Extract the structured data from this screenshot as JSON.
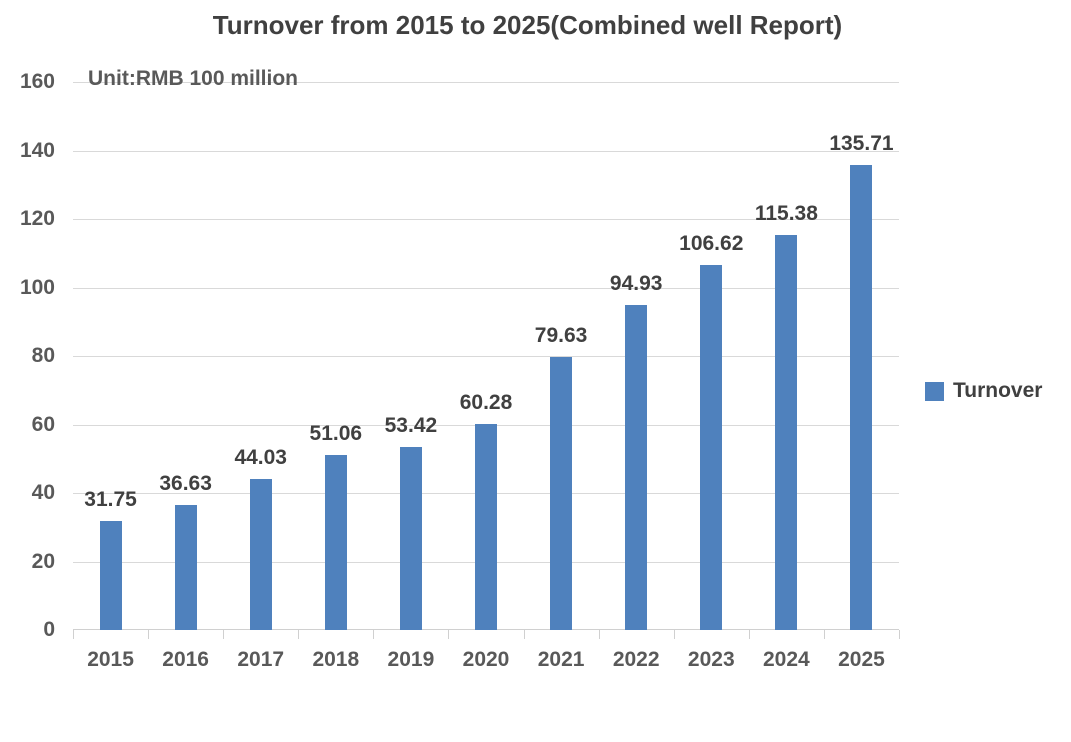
{
  "chart_data": {
    "type": "bar",
    "title": "Turnover from 2015 to 2025(Combined well Report)",
    "unit_label": "Unit:RMB 100 million",
    "categories": [
      "2015",
      "2016",
      "2017",
      "2018",
      "2019",
      "2020",
      "2021",
      "2022",
      "2023",
      "2024",
      "2025"
    ],
    "series": [
      {
        "name": "Turnover",
        "values": [
          31.75,
          36.63,
          44.03,
          51.06,
          53.42,
          60.28,
          79.63,
          94.93,
          106.62,
          115.38,
          135.71
        ]
      }
    ],
    "value_labels": [
      "31.75",
      "36.63",
      "44.03",
      "51.06",
      "53.42",
      "60.28",
      "79.63",
      "94.93",
      "106.62",
      "115.38",
      "135.71"
    ],
    "xlabel": "",
    "ylabel": "",
    "ylim": [
      0,
      160
    ],
    "ytick_step": 20,
    "ytick_labels": [
      "0",
      "20",
      "40",
      "60",
      "80",
      "100",
      "120",
      "140",
      "160"
    ],
    "grid": true,
    "legend_position": "right",
    "colors": {
      "bar": "#4f81bd",
      "grid": "#d9d9d9",
      "axis_line": "#d0d0d0",
      "axis_text": "#595959",
      "label_text": "#404040",
      "background": "#ffffff"
    }
  }
}
